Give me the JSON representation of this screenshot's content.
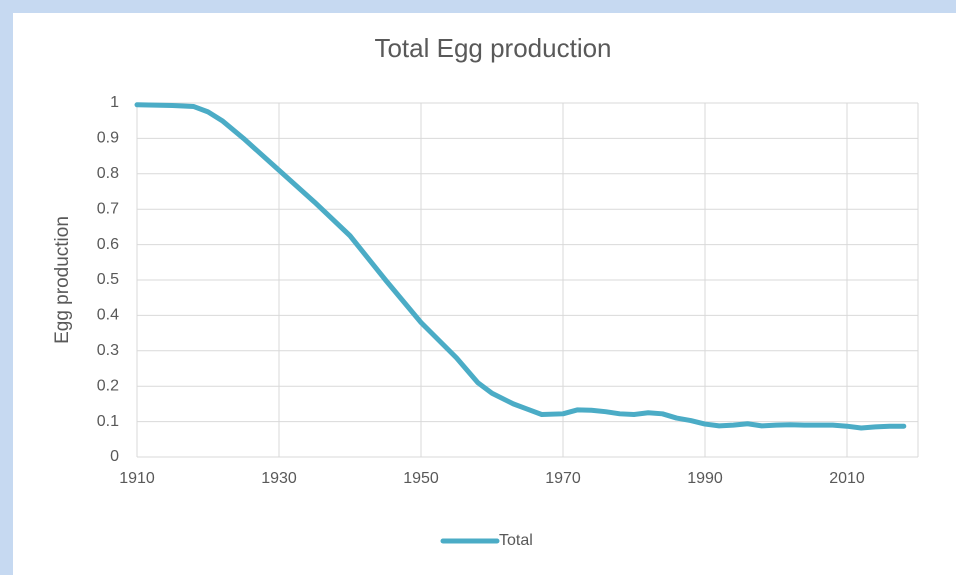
{
  "chart_data": {
    "type": "line",
    "title": "Total Egg production",
    "y_label": "Egg production",
    "x": [
      1910,
      1915,
      1918,
      1920,
      1922,
      1925,
      1930,
      1935,
      1940,
      1945,
      1950,
      1955,
      1958,
      1960,
      1963,
      1965,
      1967,
      1970,
      1972,
      1974,
      1976,
      1978,
      1980,
      1982,
      1984,
      1986,
      1988,
      1990,
      1992,
      1994,
      1996,
      1998,
      2000,
      2002,
      2004,
      2006,
      2008,
      2010,
      2012,
      2014,
      2016,
      2018
    ],
    "series": [
      {
        "name": "Total",
        "color": "#4bacc6",
        "values": [
          0.995,
          0.993,
          0.99,
          0.975,
          0.95,
          0.9,
          0.81,
          0.72,
          0.625,
          0.5,
          0.38,
          0.28,
          0.21,
          0.18,
          0.15,
          0.135,
          0.12,
          0.122,
          0.133,
          0.132,
          0.128,
          0.122,
          0.12,
          0.125,
          0.122,
          0.11,
          0.103,
          0.093,
          0.088,
          0.09,
          0.094,
          0.088,
          0.09,
          0.091,
          0.09,
          0.09,
          0.09,
          0.087,
          0.082,
          0.085,
          0.087,
          0.087
        ]
      }
    ],
    "xlim": [
      1910,
      2020
    ],
    "xticks": [
      1910,
      1930,
      1950,
      1970,
      1990,
      2010
    ],
    "ylim": [
      0,
      1
    ],
    "yticks": [
      0,
      0.1,
      0.2,
      0.3,
      0.4,
      0.5,
      0.6,
      0.7,
      0.8,
      0.9,
      1
    ],
    "grid": true,
    "legend": "bottom"
  }
}
